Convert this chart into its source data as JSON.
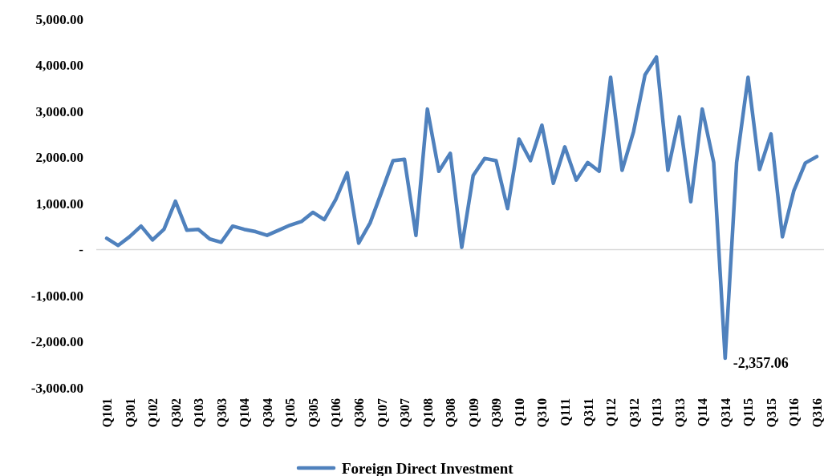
{
  "chart_data": {
    "type": "line",
    "categories": [
      "Q101",
      null,
      "Q301",
      null,
      "Q102",
      null,
      "Q302",
      null,
      "Q103",
      null,
      "Q303",
      null,
      "Q104",
      null,
      "Q304",
      null,
      "Q105",
      null,
      "Q305",
      null,
      "Q106",
      null,
      "Q306",
      null,
      "Q107",
      null,
      "Q307",
      null,
      "Q108",
      null,
      "Q308",
      null,
      "Q109",
      null,
      "Q309",
      null,
      "Q110",
      null,
      "Q310",
      null,
      "Q111",
      null,
      "Q311",
      null,
      "Q112",
      null,
      "Q312",
      null,
      "Q113",
      null,
      "Q313",
      null,
      "Q114",
      null,
      "Q314",
      null,
      "Q115",
      null,
      "Q315",
      null,
      "Q116",
      null,
      "Q316"
    ],
    "series": [
      {
        "name": "Foreign Direct Investment",
        "color": "#4f81bd",
        "values": [
          245,
          90,
          280,
          510,
          210,
          440,
          1050,
          420,
          440,
          230,
          160,
          510,
          440,
          390,
          310,
          420,
          530,
          610,
          810,
          650,
          1090,
          1670,
          140,
          580,
          1250,
          1930,
          1960,
          310,
          3050,
          1700,
          2090,
          50,
          1610,
          1980,
          1930,
          890,
          2400,
          1930,
          2700,
          1440,
          2230,
          1510,
          1890,
          1700,
          3740,
          1720,
          2560,
          3790,
          4180,
          1720,
          2880,
          1040,
          3050,
          1890,
          -2357.06,
          1890,
          3740,
          1740,
          2510,
          280,
          1280,
          1880,
          2020
        ],
        "value_labels": [
          null,
          null,
          null,
          null,
          null,
          null,
          null,
          null,
          null,
          null,
          null,
          null,
          null,
          null,
          null,
          null,
          null,
          null,
          null,
          null,
          null,
          null,
          null,
          null,
          null,
          null,
          null,
          null,
          null,
          null,
          null,
          null,
          null,
          null,
          null,
          null,
          null,
          null,
          null,
          null,
          null,
          null,
          null,
          null,
          null,
          null,
          null,
          null,
          null,
          null,
          null,
          null,
          null,
          null,
          "-2,357.06",
          null,
          null,
          null,
          null,
          null,
          null,
          null,
          null
        ]
      }
    ],
    "ylim": [
      -3000,
      5000
    ],
    "yticks": [
      {
        "value": -3000,
        "label": "-3,000.00"
      },
      {
        "value": -2000,
        "label": "-2,000.00"
      },
      {
        "value": -1000,
        "label": "-1,000.00"
      },
      {
        "value": 0,
        "label": "-"
      },
      {
        "value": 1000,
        "label": "1,000.00"
      },
      {
        "value": 2000,
        "label": "2,000.00"
      },
      {
        "value": 3000,
        "label": "3,000.00"
      },
      {
        "value": 4000,
        "label": "4,000.00"
      },
      {
        "value": 5000,
        "label": "5,000.00"
      }
    ],
    "legend": "bottom"
  }
}
